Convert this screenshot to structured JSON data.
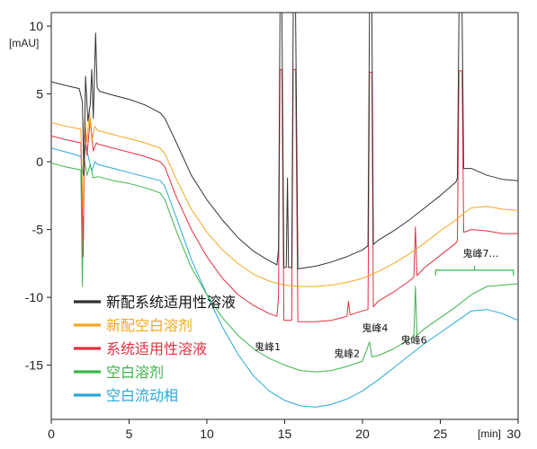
{
  "chart_data": {
    "type": "line",
    "ylabel_unit": "[mAU]",
    "xlabel_unit": "[min]",
    "xlim": [
      0,
      30
    ],
    "ylim": [
      -19,
      11
    ],
    "x_ticks": [
      0,
      5,
      10,
      15,
      20,
      25,
      30
    ],
    "y_ticks": [
      -15,
      -10,
      -5,
      0,
      5,
      10
    ],
    "grid": false,
    "legend_position": "bottom-left",
    "series": [
      {
        "name": "新配系统适用性溶液",
        "color": "#333333",
        "points": [
          [
            0,
            5.9
          ],
          [
            1,
            5.6
          ],
          [
            1.8,
            5.4
          ],
          [
            2.0,
            4.4
          ],
          [
            2.1,
            -1
          ],
          [
            2.2,
            6.3
          ],
          [
            2.35,
            3
          ],
          [
            2.5,
            4.2
          ],
          [
            2.6,
            6.8
          ],
          [
            2.7,
            3.2
          ],
          [
            2.85,
            9.5
          ],
          [
            2.95,
            5.5
          ],
          [
            3.1,
            5.2
          ],
          [
            4,
            4.9
          ],
          [
            5,
            4.6
          ],
          [
            6,
            4.2
          ],
          [
            7,
            3.6
          ],
          [
            7.3,
            3.2
          ],
          [
            8,
            1.5
          ],
          [
            9,
            -1
          ],
          [
            10,
            -2.8
          ],
          [
            11,
            -4.3
          ],
          [
            12,
            -5.6
          ],
          [
            13,
            -6.6
          ],
          [
            14,
            -7.3
          ],
          [
            14.5,
            -7.6
          ],
          [
            14.6,
            -6.5
          ],
          [
            14.7,
            11
          ],
          [
            14.82,
            11
          ],
          [
            14.95,
            -7.8
          ],
          [
            15.1,
            -7.8
          ],
          [
            15.18,
            -1.2
          ],
          [
            15.25,
            -7.8
          ],
          [
            15.45,
            -7.8
          ],
          [
            15.55,
            11
          ],
          [
            15.7,
            11
          ],
          [
            15.85,
            -7.9
          ],
          [
            17,
            -7.7
          ],
          [
            18,
            -7.4
          ],
          [
            19,
            -7.0
          ],
          [
            20,
            -6.5
          ],
          [
            20.35,
            -6.2
          ],
          [
            20.45,
            11
          ],
          [
            20.6,
            11
          ],
          [
            20.7,
            -6.1
          ],
          [
            21,
            -5.8
          ],
          [
            22,
            -5.1
          ],
          [
            23,
            -4.3
          ],
          [
            24,
            -3.4
          ],
          [
            25,
            -2.5
          ],
          [
            26,
            -1.5
          ],
          [
            26.1,
            -1.2
          ],
          [
            26.2,
            11
          ],
          [
            26.4,
            11
          ],
          [
            26.5,
            -0.5
          ],
          [
            27,
            -0.5
          ],
          [
            28,
            -1.0
          ],
          [
            29,
            -1.3
          ],
          [
            30,
            -1.4
          ]
        ]
      },
      {
        "name": "新配空白溶剂",
        "color": "#f5a623",
        "points": [
          [
            0,
            2.9
          ],
          [
            1,
            2.6
          ],
          [
            1.9,
            2.4
          ],
          [
            2.05,
            -4
          ],
          [
            2.15,
            3.2
          ],
          [
            2.3,
            1.5
          ],
          [
            2.45,
            3.8
          ],
          [
            2.6,
            1.5
          ],
          [
            2.8,
            2.6
          ],
          [
            3,
            2.3
          ],
          [
            4,
            2.0
          ],
          [
            5,
            1.7
          ],
          [
            6,
            1.4
          ],
          [
            7,
            1.0
          ],
          [
            7.3,
            0.6
          ],
          [
            8,
            -1.2
          ],
          [
            9,
            -3.5
          ],
          [
            10,
            -5.2
          ],
          [
            11,
            -6.5
          ],
          [
            12,
            -7.5
          ],
          [
            13,
            -8.3
          ],
          [
            14,
            -8.8
          ],
          [
            15,
            -9.1
          ],
          [
            16,
            -9.2
          ],
          [
            17,
            -9.2
          ],
          [
            18,
            -9.1
          ],
          [
            19,
            -8.9
          ],
          [
            20,
            -8.6
          ],
          [
            21,
            -8.1
          ],
          [
            22,
            -7.5
          ],
          [
            23,
            -6.8
          ],
          [
            24,
            -6.0
          ],
          [
            25,
            -5.1
          ],
          [
            26,
            -4.3
          ],
          [
            26.5,
            -3.8
          ],
          [
            27,
            -3.4
          ],
          [
            28,
            -3.3
          ],
          [
            29,
            -3.5
          ],
          [
            30,
            -3.6
          ]
        ]
      },
      {
        "name": "系统适用性溶液",
        "color": "#e03040",
        "points": [
          [
            0,
            1.9
          ],
          [
            1,
            1.6
          ],
          [
            1.9,
            1.4
          ],
          [
            2.05,
            -7
          ],
          [
            2.15,
            2.5
          ],
          [
            2.3,
            0.5
          ],
          [
            2.5,
            3.2
          ],
          [
            2.7,
            0.8
          ],
          [
            2.9,
            1.4
          ],
          [
            3,
            1.3
          ],
          [
            4,
            1.0
          ],
          [
            5,
            0.7
          ],
          [
            6,
            0.4
          ],
          [
            7,
            0
          ],
          [
            7.3,
            -0.4
          ],
          [
            8,
            -2.5
          ],
          [
            9,
            -5
          ],
          [
            10,
            -7
          ],
          [
            11,
            -8.6
          ],
          [
            12,
            -9.8
          ],
          [
            13,
            -10.6
          ],
          [
            14,
            -11.2
          ],
          [
            14.5,
            -11.4
          ],
          [
            14.6,
            -10
          ],
          [
            14.7,
            6.8
          ],
          [
            14.82,
            6.8
          ],
          [
            14.95,
            -11.7
          ],
          [
            15.45,
            -11.7
          ],
          [
            15.55,
            6.8
          ],
          [
            15.7,
            6.8
          ],
          [
            15.85,
            -11.8
          ],
          [
            17,
            -11.8
          ],
          [
            18,
            -11.7
          ],
          [
            19,
            -11.4
          ],
          [
            19.1,
            -10.3
          ],
          [
            19.2,
            -11.3
          ],
          [
            20,
            -11.0
          ],
          [
            20.35,
            -10.9
          ],
          [
            20.45,
            6.6
          ],
          [
            20.6,
            6.6
          ],
          [
            20.7,
            -10.7
          ],
          [
            21,
            -10.3
          ],
          [
            22,
            -9.6
          ],
          [
            23,
            -8.8
          ],
          [
            23.3,
            -8.5
          ],
          [
            23.4,
            -4.8
          ],
          [
            23.5,
            -8.4
          ],
          [
            24,
            -7.8
          ],
          [
            25,
            -6.9
          ],
          [
            26,
            -6.0
          ],
          [
            26.1,
            -5.8
          ],
          [
            26.2,
            6.7
          ],
          [
            26.4,
            6.7
          ],
          [
            26.5,
            -5.2
          ],
          [
            27,
            -5.0
          ],
          [
            28,
            -5.1
          ],
          [
            29,
            -5.3
          ],
          [
            30,
            -5.3
          ]
        ]
      },
      {
        "name": "空白溶剂",
        "color": "#3cb44b",
        "points": [
          [
            0,
            -0.1
          ],
          [
            1,
            -0.4
          ],
          [
            1.9,
            -0.6
          ],
          [
            2.0,
            -9.2
          ],
          [
            2.1,
            0.3
          ],
          [
            2.3,
            -1
          ],
          [
            2.5,
            -0.2
          ],
          [
            2.7,
            -1.2
          ],
          [
            3,
            -1.1
          ],
          [
            4,
            -1.4
          ],
          [
            5,
            -1.6
          ],
          [
            6,
            -1.9
          ],
          [
            7,
            -2.3
          ],
          [
            7.3,
            -2.8
          ],
          [
            8,
            -5
          ],
          [
            9,
            -7.8
          ],
          [
            10,
            -9.8
          ],
          [
            11,
            -11.5
          ],
          [
            12,
            -12.8
          ],
          [
            13,
            -13.8
          ],
          [
            14,
            -14.5
          ],
          [
            15,
            -15.0
          ],
          [
            16,
            -15.4
          ],
          [
            17,
            -15.5
          ],
          [
            18,
            -15.4
          ],
          [
            19,
            -15.1
          ],
          [
            20,
            -14.7
          ],
          [
            20.45,
            -13.3
          ],
          [
            20.6,
            -14.4
          ],
          [
            21,
            -14.3
          ],
          [
            22,
            -13.8
          ],
          [
            23,
            -13.1
          ],
          [
            23.3,
            -12.9
          ],
          [
            23.4,
            -9.2
          ],
          [
            23.5,
            -12.8
          ],
          [
            24,
            -12.3
          ],
          [
            25,
            -11.5
          ],
          [
            26,
            -10.7
          ],
          [
            27,
            -9.8
          ],
          [
            28,
            -9.2
          ],
          [
            29,
            -9.1
          ],
          [
            30,
            -9.0
          ]
        ]
      },
      {
        "name": "空白流动相",
        "color": "#2aa8d8",
        "points": [
          [
            0,
            1.0
          ],
          [
            1,
            0.7
          ],
          [
            1.9,
            0.4
          ],
          [
            2.05,
            -1
          ],
          [
            2.2,
            1.2
          ],
          [
            2.4,
            0.3
          ],
          [
            2.6,
            -0.7
          ],
          [
            2.8,
            0
          ],
          [
            3,
            -0.2
          ],
          [
            4,
            -0.5
          ],
          [
            5,
            -0.8
          ],
          [
            6,
            -1.1
          ],
          [
            7,
            -1.4
          ],
          [
            7.3,
            -1.8
          ],
          [
            8,
            -4
          ],
          [
            9,
            -7.2
          ],
          [
            10,
            -9.8
          ],
          [
            11,
            -12.2
          ],
          [
            12,
            -14.2
          ],
          [
            13,
            -15.8
          ],
          [
            14,
            -16.9
          ],
          [
            15,
            -17.6
          ],
          [
            16,
            -18.0
          ],
          [
            17,
            -18.1
          ],
          [
            18,
            -17.9
          ],
          [
            19,
            -17.5
          ],
          [
            20,
            -16.9
          ],
          [
            21,
            -16.1
          ],
          [
            22,
            -15.2
          ],
          [
            23,
            -14.3
          ],
          [
            24,
            -13.4
          ],
          [
            25,
            -12.6
          ],
          [
            26,
            -11.8
          ],
          [
            27,
            -11.0
          ],
          [
            28,
            -10.9
          ],
          [
            29,
            -11.2
          ],
          [
            30,
            -11.7
          ]
        ]
      }
    ],
    "annotations": [
      {
        "label": "鬼峰1",
        "x": 13.9,
        "y": -13.9
      },
      {
        "label": "鬼峰2",
        "x": 19.0,
        "y": -14.4
      },
      {
        "label": "鬼峰4",
        "x": 20.8,
        "y": -12.5
      },
      {
        "label": "鬼峰6",
        "x": 23.3,
        "y": -13.4
      },
      {
        "label": "鬼峰7…",
        "x": 27.6,
        "y": -7.0
      }
    ],
    "bracket": {
      "x_start": 24.7,
      "x_end": 29.7,
      "y": -8.0
    }
  }
}
